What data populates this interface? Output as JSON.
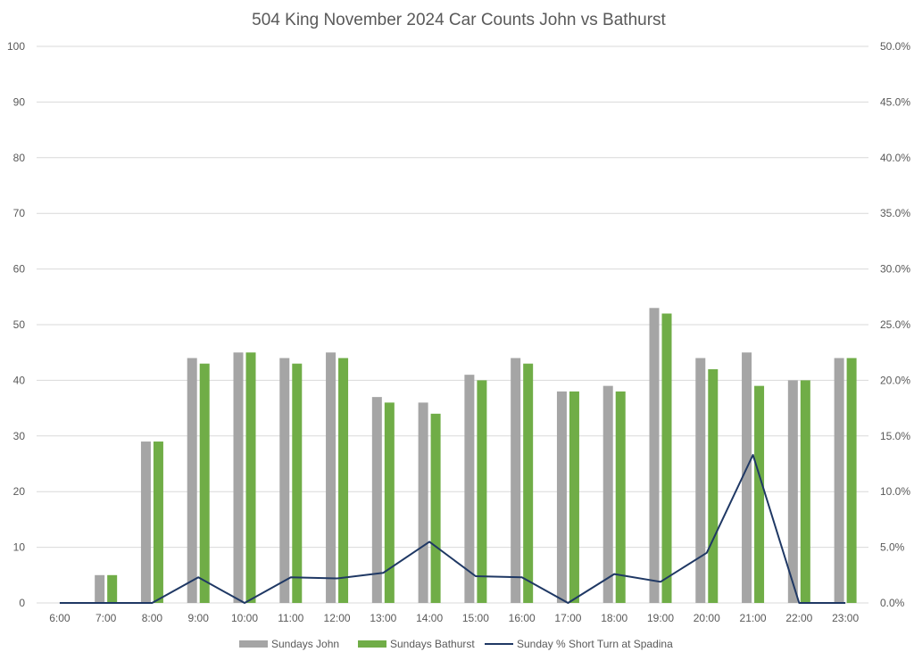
{
  "chart_data": {
    "type": "bar",
    "title": "504 King November 2024 Car Counts John vs Bathurst",
    "categories": [
      "6:00",
      "7:00",
      "8:00",
      "9:00",
      "10:00",
      "11:00",
      "12:00",
      "13:00",
      "14:00",
      "15:00",
      "16:00",
      "17:00",
      "18:00",
      "19:00",
      "20:00",
      "21:00",
      "22:00",
      "23:00"
    ],
    "series": [
      {
        "name": "Sundays John",
        "kind": "bar",
        "axis": "left",
        "color": "#a5a5a5",
        "values": [
          0,
          5,
          29,
          44,
          45,
          44,
          45,
          37,
          36,
          41,
          44,
          38,
          39,
          53,
          44,
          45,
          40,
          44
        ]
      },
      {
        "name": "Sundays Bathurst",
        "kind": "bar",
        "axis": "left",
        "color": "#70ad47",
        "values": [
          0,
          5,
          29,
          43,
          45,
          43,
          44,
          36,
          34,
          40,
          43,
          38,
          38,
          52,
          42,
          39,
          40,
          44
        ]
      },
      {
        "name": "Sunday % Short Turn at Spadina",
        "kind": "line",
        "axis": "right",
        "color": "#1f3864",
        "values": [
          0,
          0,
          0,
          2.3,
          0,
          2.3,
          2.2,
          2.7,
          5.5,
          2.4,
          2.3,
          0,
          2.6,
          1.9,
          4.5,
          13.3,
          0,
          0
        ]
      }
    ],
    "y_left": {
      "min": 0,
      "max": 100,
      "step": 10,
      "ticks": [
        "0",
        "10",
        "20",
        "30",
        "40",
        "50",
        "60",
        "70",
        "80",
        "90",
        "100"
      ]
    },
    "y_right": {
      "min": 0,
      "max": 50,
      "step": 5,
      "ticks": [
        "0.0%",
        "5.0%",
        "10.0%",
        "15.0%",
        "20.0%",
        "25.0%",
        "30.0%",
        "35.0%",
        "40.0%",
        "45.0%",
        "50.0%"
      ]
    },
    "grid": true,
    "legend": "bottom"
  }
}
